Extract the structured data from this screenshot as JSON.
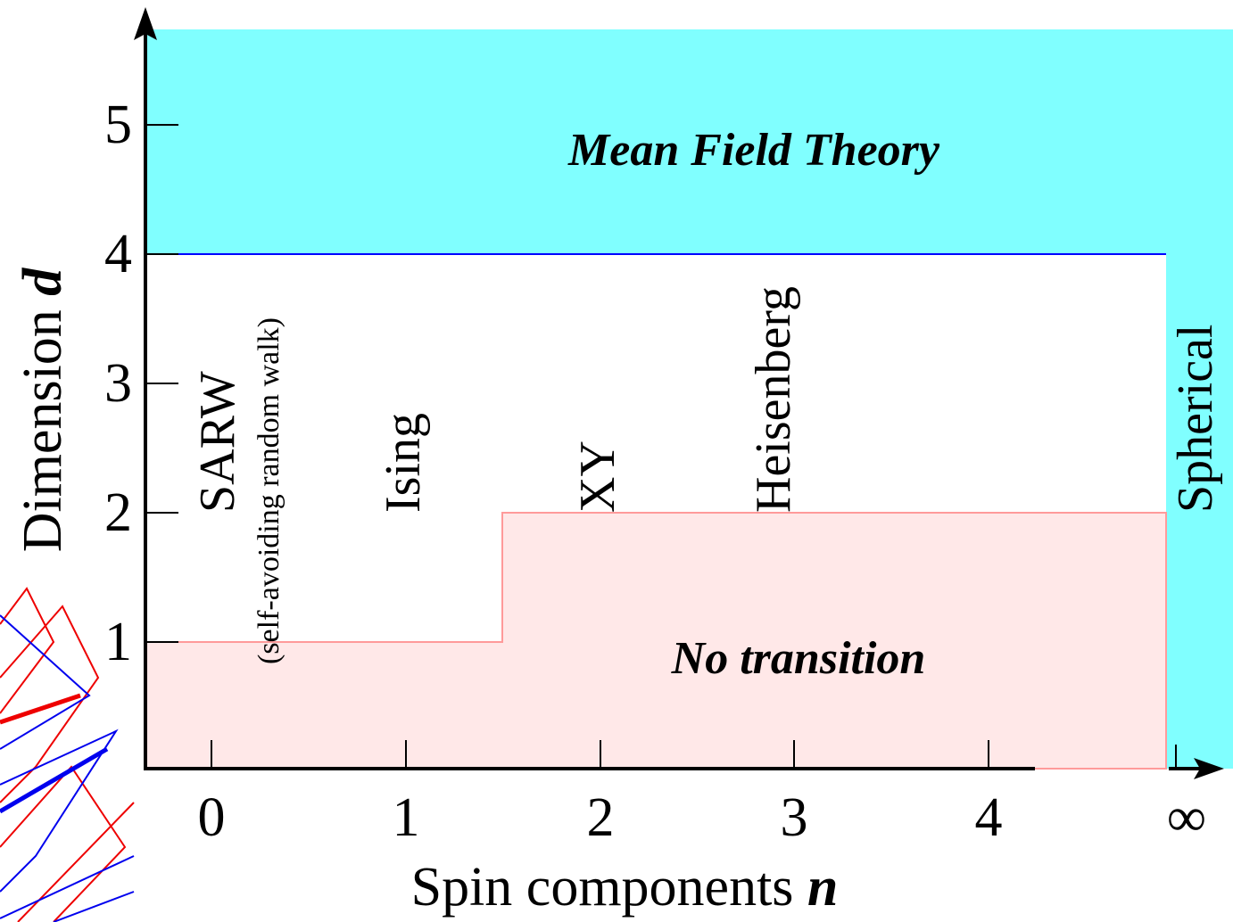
{
  "regions": {
    "mean_field": "Mean Field Theory",
    "no_transition": "No transition"
  },
  "models": {
    "sarw": "SARW",
    "sarw_note": "(self-avoiding random walk)",
    "ising": "Ising",
    "xy": "XY",
    "heisenberg": "Heisenberg",
    "spherical": "Spherical"
  },
  "y_axis": {
    "label": "Dimension",
    "symbol": "d",
    "ticks": [
      1,
      2,
      3,
      4,
      5
    ]
  },
  "x_axis": {
    "label": "Spin components",
    "symbol": "n",
    "ticks": [
      0,
      1,
      2,
      3,
      4
    ],
    "infinity": "∞"
  }
}
